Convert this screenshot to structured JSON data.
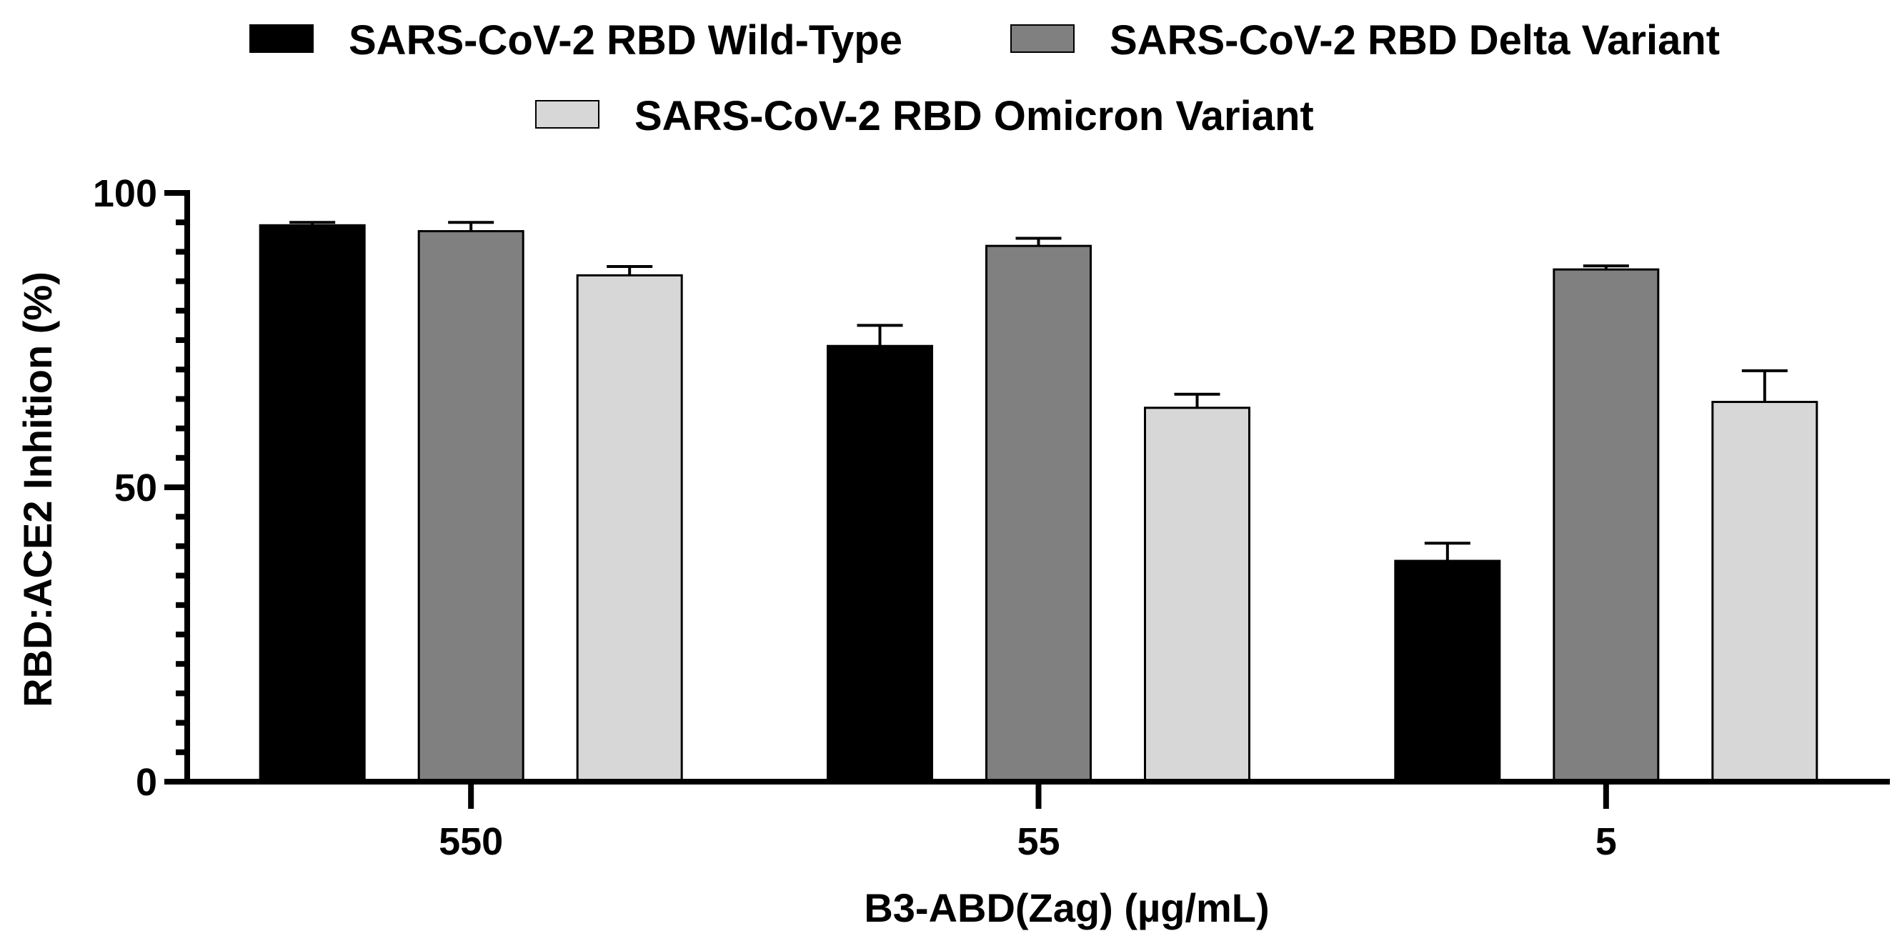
{
  "chart_data": {
    "type": "bar",
    "title": "",
    "xlabel": "B3-ABD(Zag) (µg/mL)",
    "ylabel": "RBD:ACE2 Inhition (%)",
    "ylim": [
      0,
      100
    ],
    "yticks": [
      "0",
      "50",
      "100"
    ],
    "categories": [
      "550",
      "55",
      "5"
    ],
    "legend_position": "top",
    "grid": false,
    "error_bars": "upper only",
    "series": [
      {
        "name": "SARS-CoV-2 RBD Wild-Type",
        "color": "#000000",
        "values": [
          94.5,
          74,
          37.5
        ],
        "errors": [
          0.5,
          3.5,
          3
        ]
      },
      {
        "name": "SARS-CoV-2 RBD Delta Variant",
        "color": "#808080",
        "values": [
          93.5,
          91,
          87
        ],
        "errors": [
          1.5,
          1.3,
          0.6
        ]
      },
      {
        "name": "SARS-CoV-2 RBD Omicron Variant",
        "color": "#d7d7d7",
        "values": [
          86,
          63.5,
          64.5
        ],
        "errors": [
          1.5,
          2.3,
          5.3
        ]
      }
    ]
  }
}
